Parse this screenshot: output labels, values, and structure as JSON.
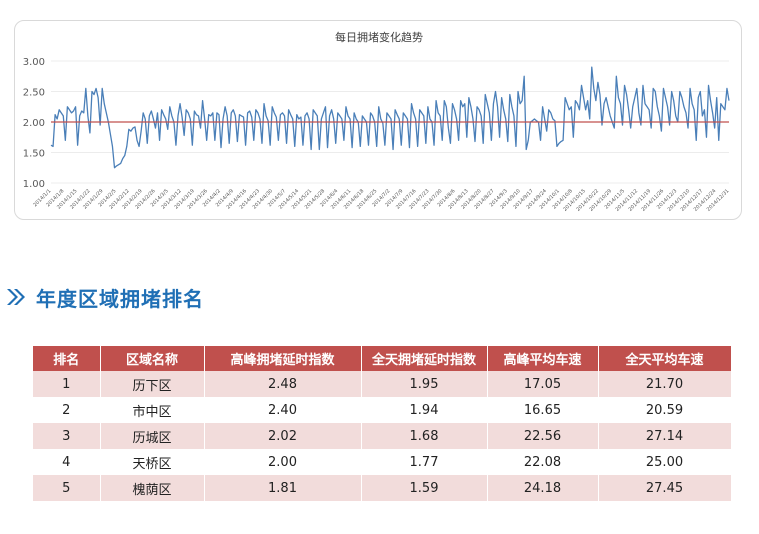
{
  "chart_data": {
    "type": "line",
    "title": "每日拥堵变化趋势",
    "ylim": [
      1.0,
      3.0
    ],
    "yticks": [
      "1.00",
      "1.50",
      "2.00",
      "2.50",
      "3.00"
    ],
    "reference_line": 2.0,
    "colors": {
      "line": "#4a7fb8",
      "reference": "#c0504d",
      "grid": "#d9d9d9"
    },
    "x_tick_labels": [
      "2014/1/1",
      "2014/1/8",
      "2014/1/15",
      "2014/1/22",
      "2014/1/29",
      "2014/2/5",
      "2014/2/12",
      "2014/2/19",
      "2014/2/26",
      "2014/3/5",
      "2014/3/12",
      "2014/3/19",
      "2014/3/26",
      "2014/4/2",
      "2014/4/9",
      "2014/4/16",
      "2014/4/23",
      "2014/4/30",
      "2014/5/7",
      "2014/5/14",
      "2014/5/21",
      "2014/5/28",
      "2014/6/4",
      "2014/6/11",
      "2014/6/18",
      "2014/6/25",
      "2014/7/2",
      "2014/7/9",
      "2014/7/16",
      "2014/7/23",
      "2014/7/30",
      "2014/8/6",
      "2014/8/13",
      "2014/8/20",
      "2014/8/27",
      "2014/9/3",
      "2014/9/10",
      "2014/9/17",
      "2014/9/24",
      "2014/10/1",
      "2014/10/8",
      "2014/10/15",
      "2014/10/22",
      "2014/10/29",
      "2014/11/5",
      "2014/11/12",
      "2014/11/19",
      "2014/11/26",
      "2014/12/3",
      "2014/12/10",
      "2014/12/17",
      "2014/12/24",
      "2014/12/31"
    ],
    "series": [
      {
        "values": [
          1.62,
          1.6,
          2.12,
          2.05,
          2.2,
          2.15,
          2.1,
          1.7,
          2.25,
          2.2,
          2.15,
          2.18,
          2.25,
          1.62,
          2.1,
          2.18,
          2.15,
          2.55,
          2.1,
          1.82,
          2.5,
          2.45,
          2.55,
          2.4,
          1.95,
          2.55,
          2.3,
          2.15,
          2.0,
          1.8,
          1.6,
          1.25,
          1.28,
          1.3,
          1.32,
          1.4,
          1.45,
          1.6,
          1.88,
          1.85,
          1.9,
          1.92,
          1.7,
          1.6,
          1.85,
          2.15,
          2.05,
          1.65,
          2.1,
          2.18,
          2.05,
          1.9,
          2.15,
          1.7,
          2.2,
          2.12,
          2.05,
          1.88,
          2.25,
          2.1,
          2.0,
          1.62,
          2.1,
          2.3,
          2.08,
          1.78,
          2.2,
          2.15,
          2.05,
          1.62,
          2.18,
          2.12,
          2.1,
          1.9,
          2.35,
          2.05,
          1.7,
          2.12,
          2.1,
          2.15,
          1.7,
          2.15,
          2.12,
          1.58,
          2.05,
          2.25,
          2.1,
          1.65,
          2.15,
          2.2,
          2.1,
          1.68,
          2.12,
          2.1,
          2.08,
          1.62,
          2.15,
          2.18,
          2.08,
          1.7,
          2.2,
          2.15,
          2.05,
          1.65,
          2.3,
          2.1,
          2.02,
          1.62,
          2.25,
          2.15,
          2.08,
          1.7,
          2.12,
          2.15,
          2.1,
          1.65,
          2.2,
          2.12,
          2.05,
          1.6,
          2.12,
          2.05,
          2.08,
          1.62,
          2.1,
          2.15,
          2.05,
          1.55,
          2.2,
          2.15,
          2.1,
          1.55,
          2.05,
          2.15,
          2.25,
          1.58,
          2.1,
          2.2,
          2.05,
          1.65,
          2.15,
          2.1,
          2.05,
          1.7,
          2.25,
          2.1,
          2.05,
          1.58,
          2.15,
          2.05,
          2.0,
          1.6,
          2.1,
          2.05,
          2.0,
          1.62,
          2.15,
          2.1,
          2.0,
          1.6,
          2.25,
          2.05,
          1.98,
          1.62,
          2.15,
          2.1,
          2.05,
          1.55,
          2.2,
          2.12,
          2.05,
          1.62,
          2.15,
          2.1,
          2.05,
          1.58,
          2.3,
          2.15,
          2.05,
          1.6,
          2.2,
          2.15,
          2.1,
          1.65,
          2.25,
          2.05,
          2.0,
          1.62,
          2.35,
          2.15,
          2.1,
          1.7,
          2.35,
          2.25,
          1.9,
          1.65,
          2.3,
          2.2,
          2.05,
          1.7,
          2.35,
          2.25,
          2.3,
          1.75,
          2.4,
          2.25,
          2.05,
          1.68,
          2.25,
          2.2,
          2.1,
          1.65,
          2.45,
          2.3,
          2.15,
          1.7,
          2.3,
          2.5,
          2.25,
          1.75,
          2.4,
          2.2,
          2.05,
          1.68,
          2.45,
          2.25,
          2.1,
          1.6,
          2.5,
          2.3,
          2.35,
          2.75,
          1.55,
          1.7,
          2.0,
          2.02,
          2.05,
          2.02,
          2.0,
          1.7,
          2.25,
          2.05,
          1.85,
          2.2,
          2.15,
          2.05,
          2.02,
          1.6,
          1.65,
          1.68,
          1.7,
          2.4,
          2.3,
          2.2,
          2.25,
          1.75,
          2.35,
          2.3,
          2.2,
          2.6,
          2.4,
          2.2,
          2.35,
          2.05,
          2.9,
          2.55,
          2.35,
          2.65,
          2.45,
          1.95,
          2.3,
          2.4,
          2.25,
          2.1,
          2.0,
          1.9,
          2.75,
          2.4,
          2.3,
          1.95,
          2.6,
          2.45,
          2.2,
          1.9,
          2.25,
          2.4,
          2.55,
          2.15,
          1.95,
          2.6,
          2.3,
          2.25,
          2.2,
          1.9,
          2.55,
          2.5,
          2.25,
          2.1,
          1.85,
          2.55,
          2.4,
          2.25,
          1.95,
          2.5,
          2.35,
          2.1,
          2.0,
          2.5,
          2.4,
          2.25,
          2.15,
          1.9,
          2.55,
          2.3,
          2.2,
          1.7,
          2.4,
          2.5,
          2.1,
          2.2,
          1.75,
          2.6,
          2.35,
          2.15,
          1.9,
          2.4,
          1.7,
          2.3,
          2.25,
          2.2,
          2.55,
          2.35
        ]
      }
    ]
  },
  "section": {
    "title": "年度区域拥堵排名"
  },
  "ranking_table": {
    "headers": [
      "排名",
      "区域名称",
      "高峰拥堵延时指数",
      "全天拥堵延时指数",
      "高峰平均车速",
      "全天平均车速"
    ],
    "rows": [
      [
        "1",
        "历下区",
        "2.48",
        "1.95",
        "17.05",
        "21.70"
      ],
      [
        "2",
        "市中区",
        "2.40",
        "1.94",
        "16.65",
        "20.59"
      ],
      [
        "3",
        "历城区",
        "2.02",
        "1.68",
        "22.56",
        "27.14"
      ],
      [
        "4",
        "天桥区",
        "2.00",
        "1.77",
        "22.08",
        "25.00"
      ],
      [
        "5",
        "槐荫区",
        "1.81",
        "1.59",
        "24.18",
        "27.45"
      ]
    ],
    "colors": {
      "header": "#c0504d",
      "odd_row": "#f2dcdb",
      "even_row": "#ffffff"
    }
  },
  "heading_icon": "double-chevron-right-icon",
  "accent_color": "#1f6fb5"
}
